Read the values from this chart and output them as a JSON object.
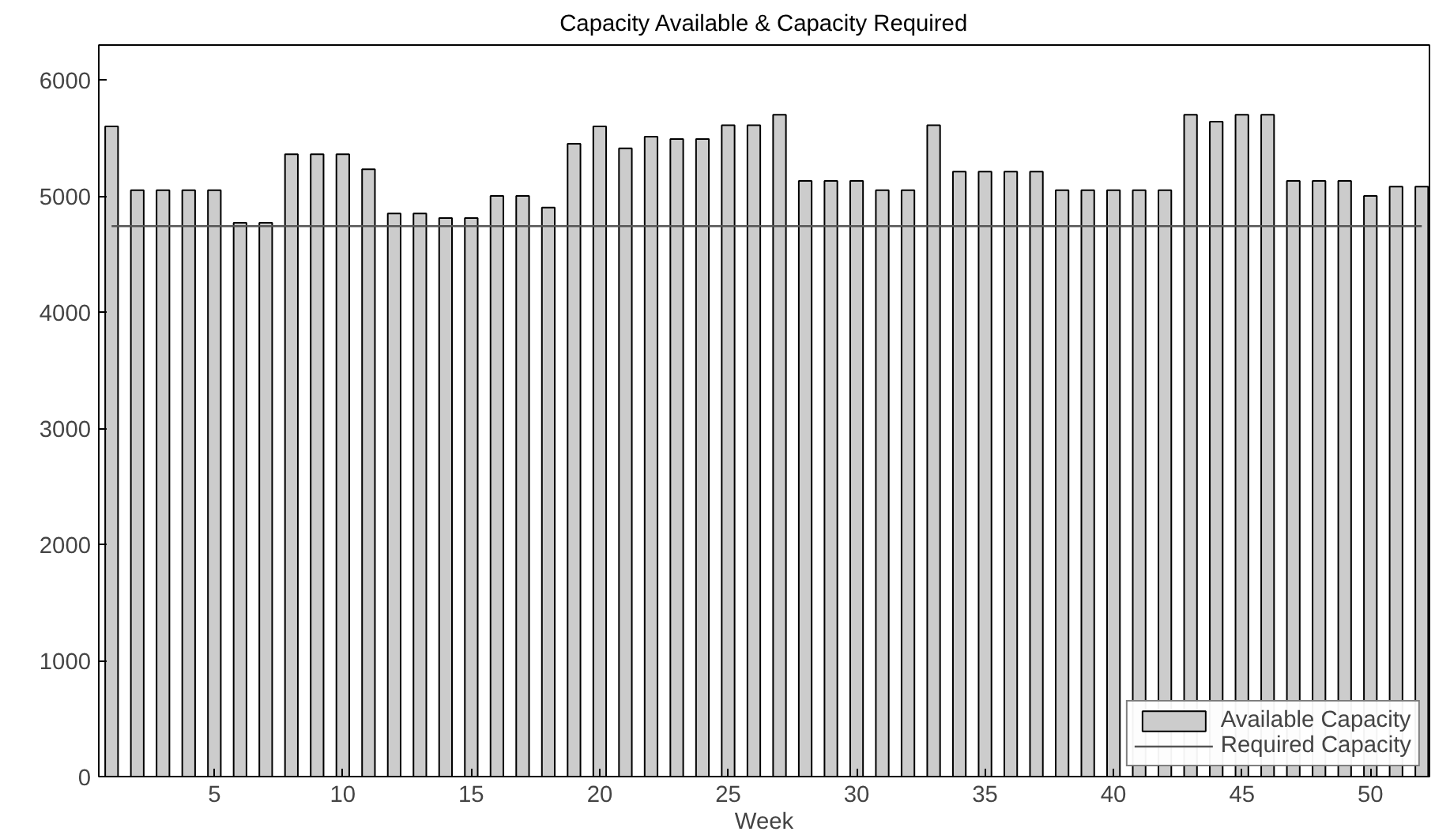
{
  "chart_data": {
    "type": "bar",
    "title": "Capacity Available & Capacity Required",
    "xlabel": "Week",
    "x": [
      1,
      2,
      3,
      4,
      5,
      6,
      7,
      8,
      9,
      10,
      11,
      12,
      13,
      14,
      15,
      16,
      17,
      18,
      19,
      20,
      21,
      22,
      23,
      24,
      25,
      26,
      27,
      28,
      29,
      30,
      31,
      32,
      33,
      34,
      35,
      36,
      37,
      38,
      39,
      40,
      41,
      42,
      43,
      44,
      45,
      46,
      47,
      48,
      49,
      50,
      51,
      52
    ],
    "series": [
      {
        "name": "Available Capacity",
        "color": "#cccccc",
        "values": [
          5600,
          5050,
          5050,
          5050,
          5050,
          4770,
          4770,
          5360,
          5360,
          5360,
          5230,
          4850,
          4850,
          4810,
          4810,
          5000,
          5000,
          4900,
          5450,
          5600,
          5410,
          5510,
          5490,
          5490,
          5610,
          5610,
          5700,
          5130,
          5130,
          5130,
          5050,
          5050,
          5610,
          5210,
          5210,
          5210,
          5210,
          5050,
          5050,
          5050,
          5050,
          5050,
          5700,
          5640,
          5700,
          5700,
          5130,
          5130,
          5130,
          5000,
          5080,
          5080
        ]
      },
      {
        "name": "Required Capacity",
        "type": "line",
        "color": "#555555",
        "values": [
          4740,
          4740,
          4740,
          4740,
          4740,
          4740,
          4740,
          4740,
          4740,
          4740,
          4740,
          4740,
          4740,
          4740,
          4740,
          4740,
          4740,
          4740,
          4740,
          4740,
          4740,
          4740,
          4740,
          4740,
          4740,
          4740,
          4740,
          4740,
          4740,
          4740,
          4740,
          4740,
          4740,
          4740,
          4740,
          4740,
          4740,
          4740,
          4740,
          4740,
          4740,
          4740,
          4740,
          4740,
          4740,
          4740,
          4740,
          4740,
          4740,
          4740,
          4740,
          4740
        ]
      }
    ],
    "xlim": [
      0.5,
      52.3
    ],
    "xticks": [
      5,
      10,
      15,
      20,
      25,
      30,
      35,
      40,
      45,
      50
    ],
    "ylim": [
      0,
      6300
    ],
    "yticks": [
      0,
      1000,
      2000,
      3000,
      4000,
      5000,
      6000
    ],
    "grid": false,
    "legend": "bottom right",
    "line_style": "solid",
    "marker": "none"
  }
}
